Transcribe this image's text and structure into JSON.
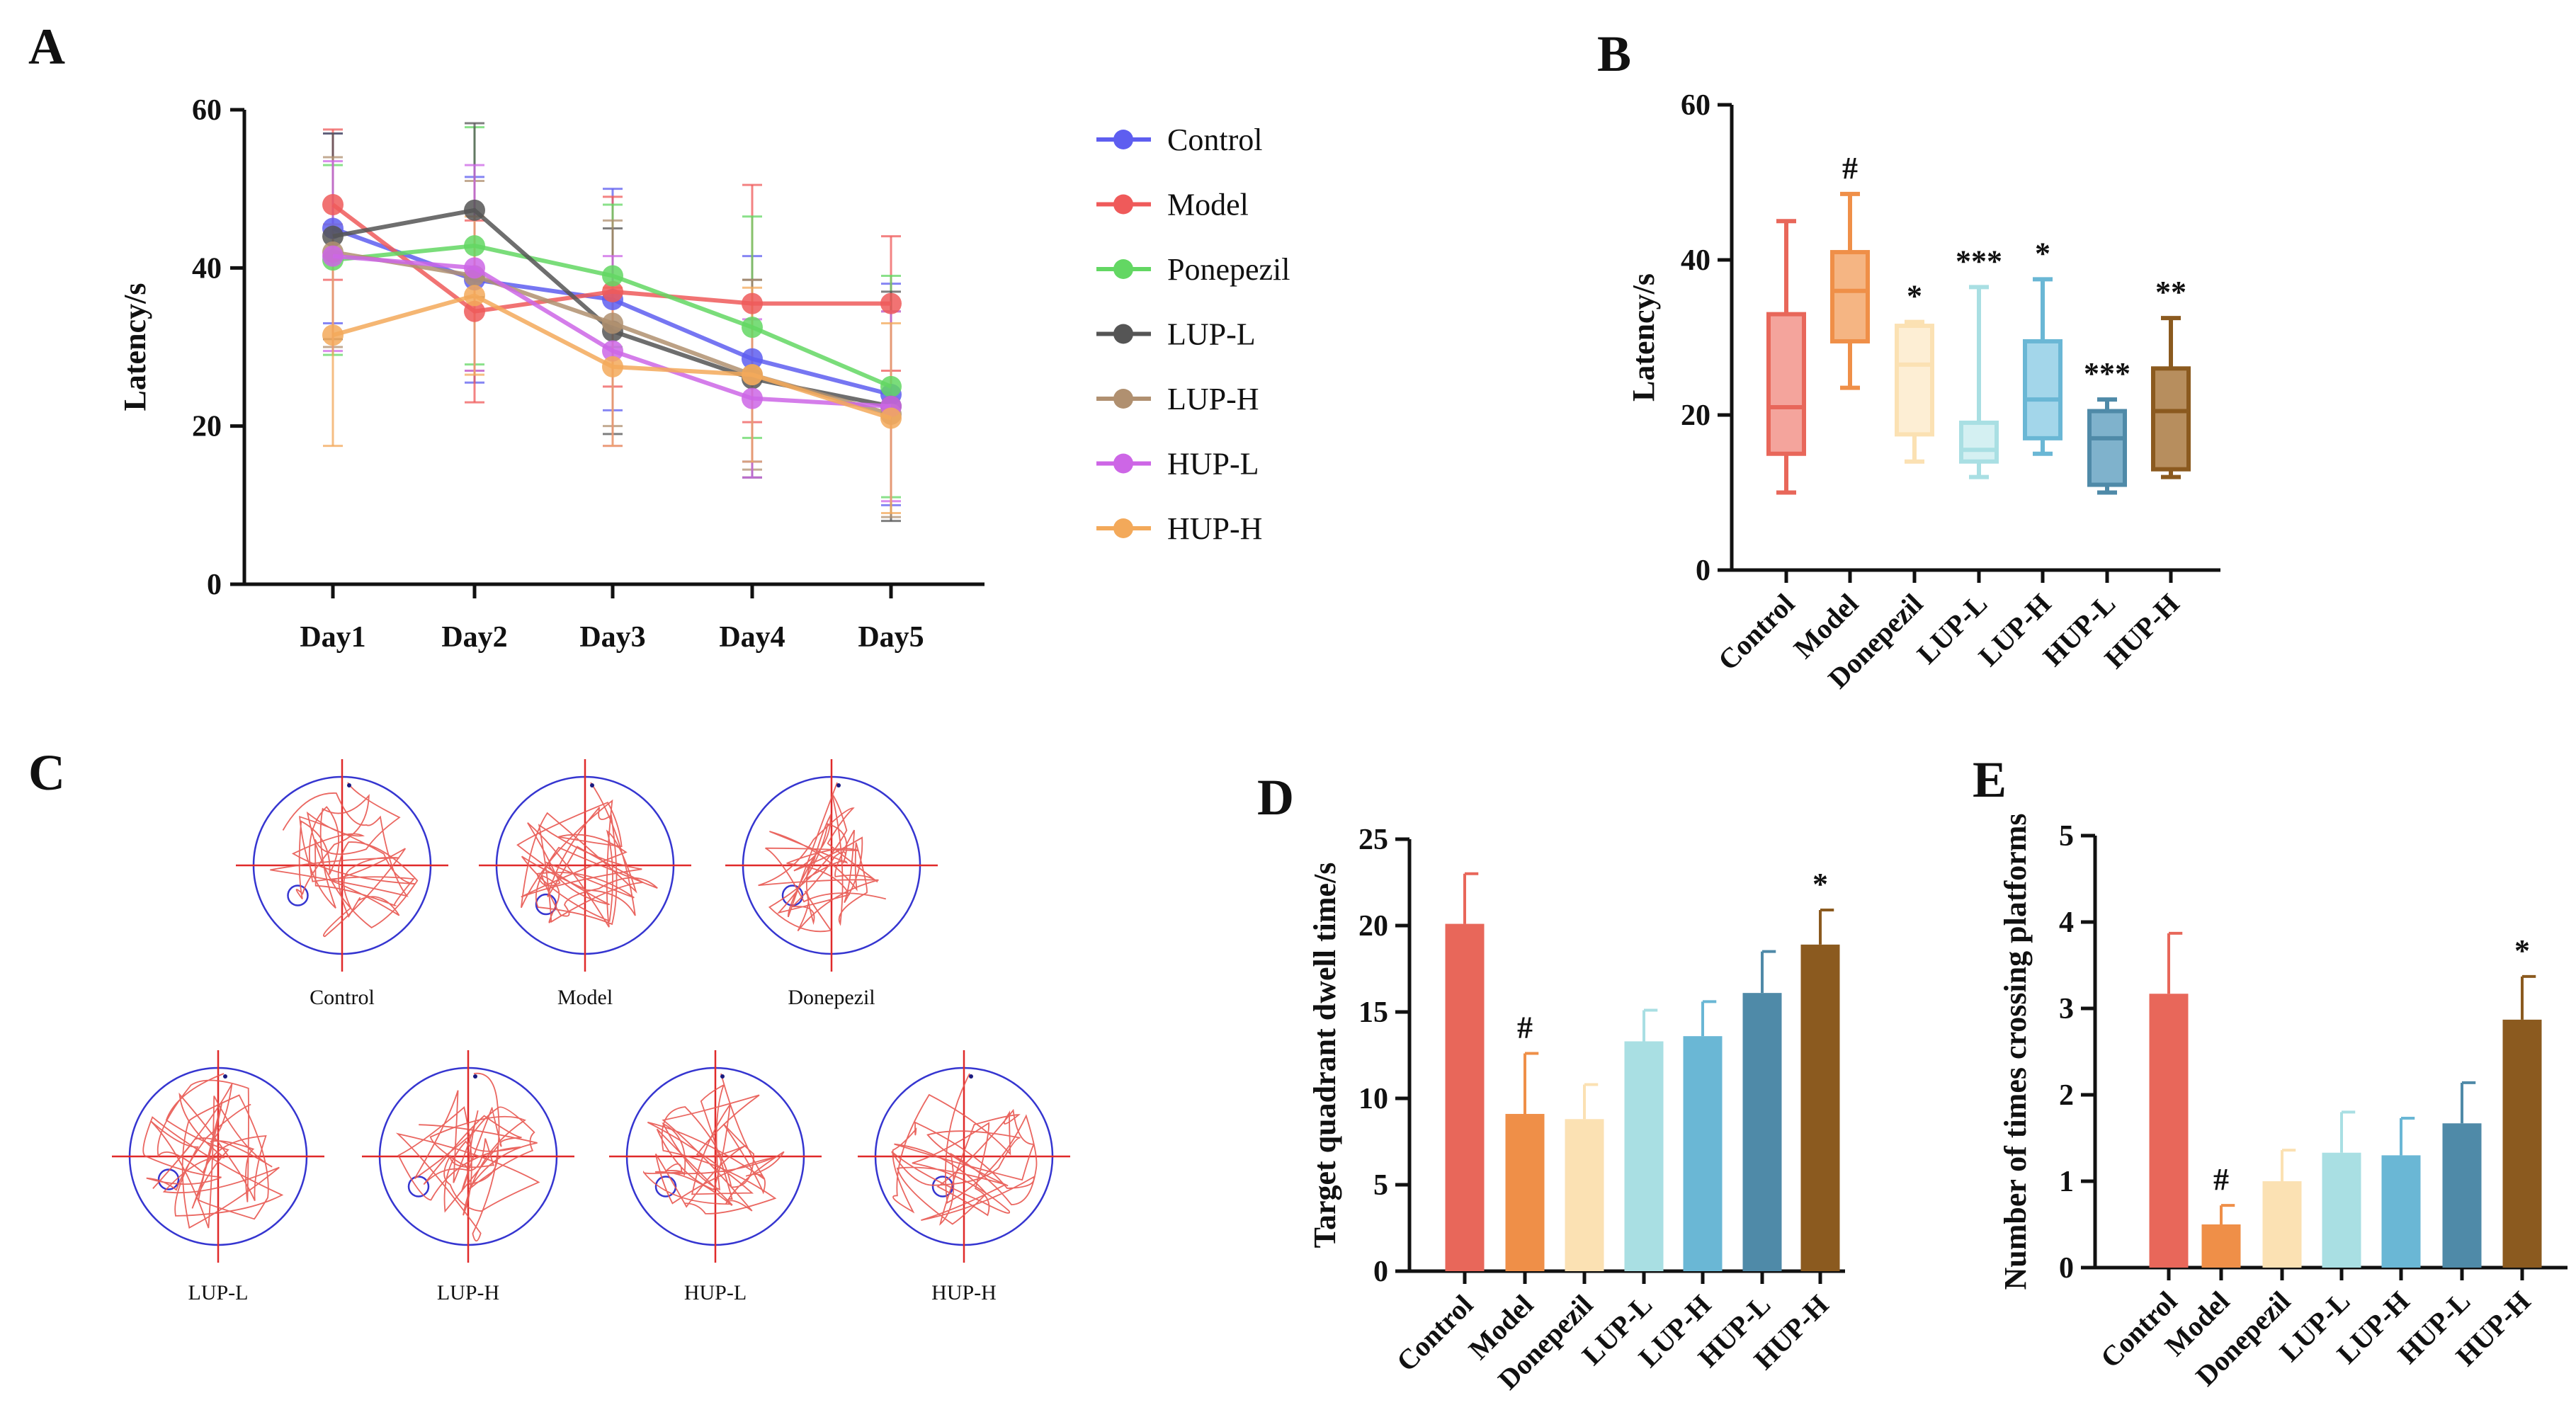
{
  "panels": {
    "A": "A",
    "B": "B",
    "C": "C",
    "D": "D",
    "E": "E"
  },
  "colors": {
    "Control": "#5e5ef0",
    "Model": "#ef5a5a",
    "Ponepezil": "#63d763",
    "LUP-L": "#555555",
    "LUP-H": "#b09070",
    "HUP-L": "#cd66e6",
    "HUP-H": "#f3a95a",
    "bar_palette": [
      "#e8675a",
      "#ef8f48",
      "#fbe1b3",
      "#a9dfe3",
      "#6ab7d5",
      "#4f8aa8",
      "#8b5a1f"
    ],
    "box_fill": [
      "#f4a49c",
      "#f5b583",
      "#fdeed4",
      "#d4f0f2",
      "#a3d6ea",
      "#7fb2cc",
      "#b78e5e"
    ],
    "maze_circle": "#3535d0",
    "maze_cross": "#e02a2a",
    "maze_path": "#e8554f"
  },
  "chart_data": [
    {
      "id": "A",
      "type": "line",
      "title": "",
      "xlabel": "",
      "ylabel": "Latency/s",
      "ylim": [
        0,
        60
      ],
      "yticks": [
        "0",
        "20",
        "40",
        "60"
      ],
      "categories": [
        "Day1",
        "Day2",
        "Day3",
        "Day4",
        "Day5"
      ],
      "legend_position": "right",
      "series": [
        {
          "name": "Control",
          "values": [
            45,
            38.5,
            36,
            28.5,
            24
          ],
          "errors": [
            12,
            13,
            14,
            13,
            14
          ]
        },
        {
          "name": "Model",
          "values": [
            48,
            34.5,
            37,
            35.5,
            35.5
          ],
          "errors": [
            9.5,
            11.5,
            12,
            15,
            8.5
          ]
        },
        {
          "name": "Ponepezil",
          "values": [
            41,
            42.8,
            39,
            32.5,
            25
          ],
          "errors": [
            12,
            15,
            9,
            14,
            14
          ]
        },
        {
          "name": "LUP-L",
          "values": [
            44,
            47.3,
            32,
            26,
            22.5
          ],
          "errors": [
            13,
            11,
            13,
            12.5,
            14.5
          ]
        },
        {
          "name": "LUP-H",
          "values": [
            42,
            39,
            33,
            26.5,
            21.5
          ],
          "errors": [
            12,
            12,
            13,
            12,
            13
          ]
        },
        {
          "name": "HUP-L",
          "values": [
            41.5,
            40,
            29.5,
            23.5,
            22.5
          ],
          "errors": [
            12,
            13,
            12,
            10,
            12
          ]
        },
        {
          "name": "HUP-H",
          "values": [
            31.5,
            36.5,
            27.5,
            26.5,
            21
          ],
          "errors": [
            14,
            10,
            10,
            11,
            12
          ]
        }
      ]
    },
    {
      "id": "B",
      "type": "box",
      "ylabel": "Latency/s",
      "ylim": [
        0,
        60
      ],
      "yticks": [
        "0",
        "20",
        "40",
        "60"
      ],
      "categories": [
        "Control",
        "Model",
        "Donepezil",
        "LUP-L",
        "LUP-H",
        "HUP-L",
        "HUP-H"
      ],
      "boxes": [
        {
          "min": 10,
          "q1": 15,
          "median": 21,
          "q3": 33,
          "max": 45,
          "sig": ""
        },
        {
          "min": 23.5,
          "q1": 29.5,
          "median": 36,
          "q3": 41,
          "max": 48.5,
          "sig": "#"
        },
        {
          "min": 14,
          "q1": 17.5,
          "median": 26.5,
          "q3": 31.5,
          "max": 32,
          "sig": "*"
        },
        {
          "min": 12,
          "q1": 14,
          "median": 15.5,
          "q3": 19,
          "max": 36.5,
          "sig": "***"
        },
        {
          "min": 15,
          "q1": 17,
          "median": 22,
          "q3": 29.5,
          "max": 37.5,
          "sig": "*"
        },
        {
          "min": 10,
          "q1": 11,
          "median": 17,
          "q3": 20.5,
          "max": 22,
          "sig": "***"
        },
        {
          "min": 12,
          "q1": 13,
          "median": 20.5,
          "q3": 26,
          "max": 32.5,
          "sig": "**"
        }
      ]
    },
    {
      "id": "D",
      "type": "bar",
      "ylabel": "Target quadrant dwell time/s",
      "ylim": [
        0,
        25
      ],
      "yticks": [
        "0",
        "5",
        "10",
        "15",
        "20",
        "25"
      ],
      "categories": [
        "Control",
        "Model",
        "Donepezil",
        "LUP-L",
        "LUP-H",
        "HUP-L",
        "HUP-H"
      ],
      "values": [
        20.1,
        9.1,
        8.8,
        13.3,
        13.6,
        16.1,
        18.9
      ],
      "errors": [
        2.9,
        3.5,
        2.0,
        1.8,
        2.0,
        2.4,
        2.0
      ],
      "sig": [
        "",
        "#",
        "",
        "",
        "",
        "",
        "*"
      ]
    },
    {
      "id": "E",
      "type": "bar",
      "ylabel": "Number of times crossing platforms",
      "ylim": [
        0,
        5
      ],
      "yticks": [
        "0",
        "1",
        "2",
        "3",
        "4",
        "5"
      ],
      "categories": [
        "Control",
        "Model",
        "Donepezil",
        "LUP-L",
        "LUP-H",
        "HUP-L",
        "HUP-H"
      ],
      "values": [
        3.17,
        0.5,
        1.0,
        1.33,
        1.3,
        1.67,
        2.87
      ],
      "errors": [
        0.7,
        0.22,
        0.36,
        0.47,
        0.43,
        0.47,
        0.5
      ],
      "sig": [
        "",
        "#",
        "",
        "",
        "",
        "",
        "*"
      ]
    }
  ],
  "maze": {
    "labels": [
      "Control",
      "Model",
      "Donepezil",
      "LUP-L",
      "LUP-H",
      "HUP-L",
      "HUP-H"
    ]
  }
}
